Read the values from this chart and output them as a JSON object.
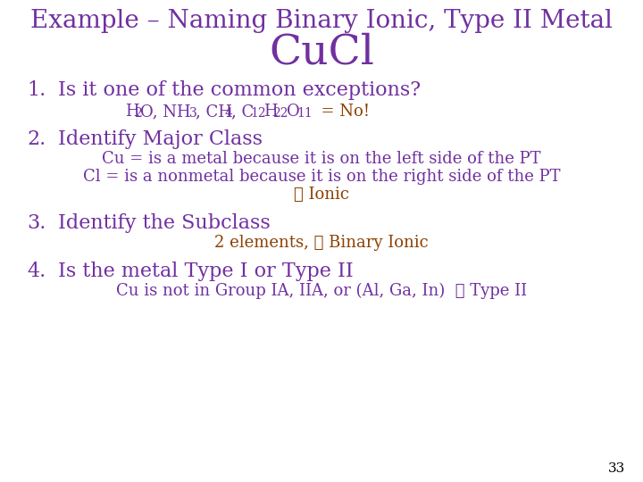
{
  "bg_color": "#ffffff",
  "title_line1": "Example – Naming Binary Ionic, Type II Metal",
  "title_line2": "CuCl",
  "title_color": "#7030a0",
  "title1_fontsize": 20,
  "title2_fontsize": 34,
  "body_color": "#7030a0",
  "body_fontsize": 16,
  "sub_fontsize": 13,
  "purple": "#7030a0",
  "orange": "#8b4000",
  "page_number": "33",
  "page_fontsize": 11
}
